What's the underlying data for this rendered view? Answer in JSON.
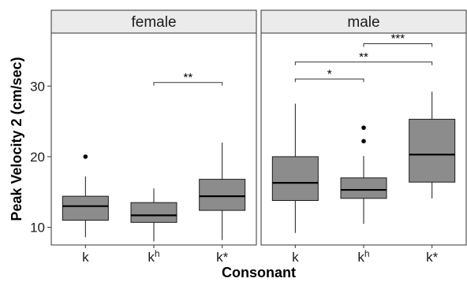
{
  "chart_data": {
    "type": "boxplot",
    "title": "",
    "xlabel": "Consonant",
    "ylabel": "Peak Velocity 2 (cm/sec)",
    "ylim": [
      7.5,
      37.5
    ],
    "yticks": [
      10,
      20,
      30
    ],
    "categories": [
      {
        "base": "k",
        "sup": ""
      },
      {
        "base": "k",
        "sup": "h"
      },
      {
        "base": "k",
        "sup": "*"
      }
    ],
    "grid": false,
    "colors": {
      "box_fill": "#8c8c8c",
      "box_stroke": "#1a1a1a",
      "strip_fill": "#ebebeb",
      "panel_border": "#333333"
    },
    "panels": [
      {
        "label": "female",
        "boxes": [
          {
            "category": "k",
            "min": 8.6,
            "q1": 11.0,
            "median": 13.0,
            "q3": 14.4,
            "max": 17.2,
            "outliers": [
              20.0
            ]
          },
          {
            "category": "kh",
            "min": 8.0,
            "q1": 10.7,
            "median": 11.7,
            "q3": 13.5,
            "max": 15.5,
            "outliers": []
          },
          {
            "category": "k*",
            "min": 8.2,
            "q1": 12.4,
            "median": 14.4,
            "q3": 16.8,
            "max": 22.0,
            "outliers": []
          }
        ],
        "significance": [
          {
            "from": 1,
            "to": 2,
            "y": 30.5,
            "label": "**"
          }
        ]
      },
      {
        "label": "male",
        "boxes": [
          {
            "category": "k",
            "min": 9.2,
            "q1": 13.8,
            "median": 16.3,
            "q3": 20.0,
            "max": 27.5,
            "outliers": []
          },
          {
            "category": "kh",
            "min": 10.5,
            "q1": 14.1,
            "median": 15.3,
            "q3": 17.0,
            "max": 20.1,
            "outliers": [
              22.2,
              24.1
            ]
          },
          {
            "category": "k*",
            "min": 14.1,
            "q1": 16.4,
            "median": 20.3,
            "q3": 25.3,
            "max": 29.2,
            "outliers": []
          }
        ],
        "significance": [
          {
            "from": 0,
            "to": 1,
            "y": 31.0,
            "label": "*"
          },
          {
            "from": 0,
            "to": 2,
            "y": 33.4,
            "label": "**"
          },
          {
            "from": 1,
            "to": 2,
            "y": 36.0,
            "label": "***"
          }
        ]
      }
    ]
  }
}
